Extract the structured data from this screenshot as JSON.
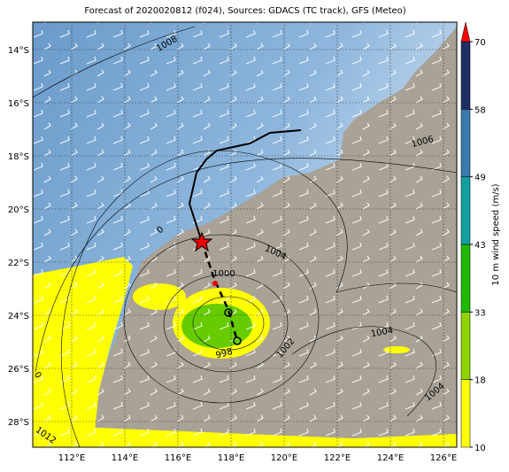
{
  "title": "Forecast of 2020020812 (f024), Sources: GDACS (TC track), GFS (Meteo)",
  "lat_labels": [
    "14°S",
    "16°S",
    "18°S",
    "20°S",
    "22°S",
    "24°S",
    "26°S",
    "28°S"
  ],
  "lon_labels": [
    "112°E",
    "114°E",
    "116°E",
    "118°E",
    "120°E",
    "122°E",
    "124°E",
    "126°E"
  ],
  "colorbar": {
    "label": "10 m wind speed (m/s)",
    "ticks": [
      10,
      18,
      33,
      43,
      49,
      58,
      70
    ],
    "colors": [
      "#ffff00",
      "#8fd400",
      "#1fb800",
      "#10a0a0",
      "#3a78b0",
      "#1e2f66"
    ],
    "extend_color": "#ff0000"
  },
  "isobar_labels": [
    "1008",
    "1006",
    "1004",
    "1000",
    "998",
    "1002",
    "1004",
    "1004",
    "1012",
    "0",
    "0"
  ]
}
